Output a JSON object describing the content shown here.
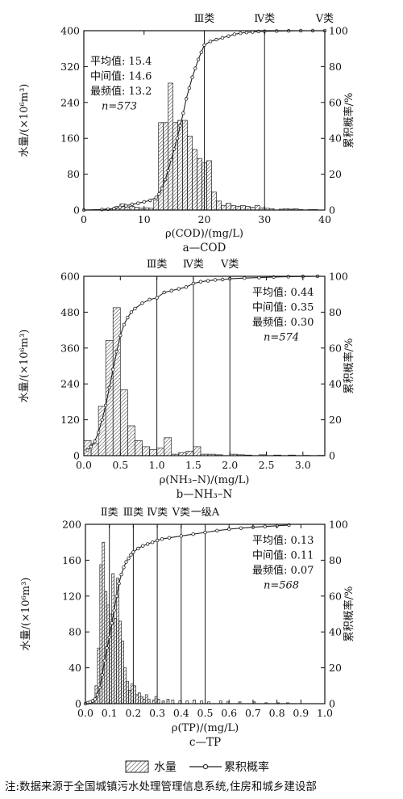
{
  "legend": {
    "bar_label": "水量",
    "line_label": "累积概率"
  },
  "note": "注:数据来源于全国城镇污水处理管理信息系统,住房和城乡建设部",
  "chart_data": [
    {
      "type": "bar",
      "panel_label": "a—COD",
      "xlabel": "ρ(COD)/(mg/L)",
      "ylabel_left": "水量/(×10⁶m³)",
      "ylabel_right": "累积概率/%",
      "xlim": [
        0,
        40
      ],
      "ylim_left": [
        0,
        400
      ],
      "ylim_right": [
        0,
        100
      ],
      "xticks": [
        0,
        10,
        20,
        30,
        40
      ],
      "xtick_labels": [
        "0",
        "10",
        "20",
        "30",
        "40"
      ],
      "yticks_left": [
        0,
        80,
        160,
        240,
        320,
        400
      ],
      "yticks_right": [
        0,
        20,
        40,
        60,
        80,
        100
      ],
      "bar_width": 0.8,
      "bars": [
        [
          3.2,
          2
        ],
        [
          4.0,
          3
        ],
        [
          4.8,
          3
        ],
        [
          5.6,
          8
        ],
        [
          6.4,
          14
        ],
        [
          7.2,
          7
        ],
        [
          8.0,
          8
        ],
        [
          8.8,
          6
        ],
        [
          9.6,
          4
        ],
        [
          10.4,
          5
        ],
        [
          11.2,
          4
        ],
        [
          12.0,
          22
        ],
        [
          12.8,
          195
        ],
        [
          13.6,
          195
        ],
        [
          14.4,
          283
        ],
        [
          15.2,
          195
        ],
        [
          16.0,
          200
        ],
        [
          16.8,
          200
        ],
        [
          17.6,
          165
        ],
        [
          18.4,
          135
        ],
        [
          19.2,
          115
        ],
        [
          20.0,
          105
        ],
        [
          20.8,
          110
        ],
        [
          21.6,
          40
        ],
        [
          22.4,
          20
        ],
        [
          23.2,
          10
        ],
        [
          24.0,
          15
        ],
        [
          24.8,
          10
        ],
        [
          25.6,
          8
        ],
        [
          26.4,
          10
        ],
        [
          27.2,
          8
        ],
        [
          28.0,
          6
        ],
        [
          28.8,
          10
        ],
        [
          29.6,
          5
        ],
        [
          30.4,
          4
        ],
        [
          31.2,
          3
        ],
        [
          32.8,
          2
        ],
        [
          33.6,
          3
        ],
        [
          34.4,
          2
        ],
        [
          35.2,
          3
        ],
        [
          36.0,
          1
        ],
        [
          37.6,
          1
        ],
        [
          38.4,
          1
        ]
      ],
      "cumulative": [
        [
          0,
          0
        ],
        [
          3,
          0.3
        ],
        [
          4,
          0.5
        ],
        [
          5,
          0.8
        ],
        [
          6,
          1.5
        ],
        [
          7,
          2.4
        ],
        [
          8,
          3.2
        ],
        [
          9,
          3.8
        ],
        [
          10,
          4.6
        ],
        [
          11,
          5.4
        ],
        [
          12,
          7
        ],
        [
          12.5,
          9
        ],
        [
          13,
          12
        ],
        [
          13.5,
          17
        ],
        [
          14,
          22
        ],
        [
          14.5,
          28
        ],
        [
          15,
          34
        ],
        [
          15.5,
          40
        ],
        [
          16,
          47
        ],
        [
          16.5,
          54
        ],
        [
          17,
          62
        ],
        [
          17.5,
          68
        ],
        [
          18,
          74
        ],
        [
          18.5,
          79
        ],
        [
          19,
          84
        ],
        [
          19.5,
          88
        ],
        [
          20,
          92
        ],
        [
          21,
          94
        ],
        [
          22,
          95
        ],
        [
          23,
          96
        ],
        [
          24,
          97
        ],
        [
          25,
          98
        ],
        [
          26,
          98.6
        ],
        [
          27,
          99
        ],
        [
          28,
          99.3
        ],
        [
          29,
          99.6
        ],
        [
          30,
          99.7
        ],
        [
          32,
          99.8
        ],
        [
          34,
          99.9
        ],
        [
          36,
          100
        ],
        [
          38,
          100
        ],
        [
          40,
          100
        ]
      ],
      "vlines": [
        {
          "x": 20,
          "label": "Ⅲ类"
        },
        {
          "x": 30,
          "label": "Ⅳ类"
        },
        {
          "x": 40,
          "label": "Ⅴ类"
        }
      ],
      "stats": [
        "平均值: 15.4",
        "中间值: 14.6",
        "最频值: 13.2",
        "n=573"
      ],
      "stats_position": "top-left"
    },
    {
      "type": "bar",
      "panel_label": "b—NH₃–N",
      "xlabel": "ρ(NH₃–N)/(mg/L)",
      "ylabel_left": "水量/(×10⁶m³)",
      "ylabel_right": "累积概率/%",
      "xlim": [
        0,
        3.3
      ],
      "ylim_left": [
        0,
        600
      ],
      "ylim_right": [
        0,
        100
      ],
      "xticks": [
        0,
        0.5,
        1.0,
        1.5,
        2.0,
        2.5,
        3.0
      ],
      "xtick_labels": [
        "0.0",
        "0.5",
        "1.0",
        "1.5",
        "2.0",
        "2.5",
        "3.0"
      ],
      "yticks_left": [
        0,
        120,
        240,
        360,
        480,
        600
      ],
      "yticks_right": [
        0,
        20,
        40,
        60,
        80,
        100
      ],
      "bar_width": 0.1,
      "bars": [
        [
          0.05,
          50
        ],
        [
          0.15,
          40
        ],
        [
          0.25,
          165
        ],
        [
          0.35,
          385
        ],
        [
          0.45,
          495
        ],
        [
          0.55,
          220
        ],
        [
          0.65,
          100
        ],
        [
          0.75,
          50
        ],
        [
          0.85,
          30
        ],
        [
          0.95,
          20
        ],
        [
          1.05,
          25
        ],
        [
          1.15,
          60
        ],
        [
          1.25,
          5
        ],
        [
          1.35,
          10
        ],
        [
          1.45,
          15
        ],
        [
          1.55,
          30
        ],
        [
          1.65,
          5
        ],
        [
          1.75,
          5
        ],
        [
          1.85,
          3
        ],
        [
          2.05,
          5
        ],
        [
          2.15,
          3
        ],
        [
          2.25,
          2
        ],
        [
          2.45,
          3
        ],
        [
          2.65,
          2
        ],
        [
          2.85,
          2
        ],
        [
          3.05,
          1
        ],
        [
          3.25,
          1
        ]
      ],
      "cumulative": [
        [
          0.05,
          3
        ],
        [
          0.1,
          5
        ],
        [
          0.15,
          8
        ],
        [
          0.2,
          13
        ],
        [
          0.25,
          20
        ],
        [
          0.3,
          28
        ],
        [
          0.35,
          38
        ],
        [
          0.4,
          48
        ],
        [
          0.45,
          58
        ],
        [
          0.5,
          67
        ],
        [
          0.55,
          73
        ],
        [
          0.6,
          77
        ],
        [
          0.65,
          80
        ],
        [
          0.7,
          82
        ],
        [
          0.8,
          85
        ],
        [
          0.9,
          87
        ],
        [
          1.0,
          88
        ],
        [
          1.1,
          91
        ],
        [
          1.2,
          92
        ],
        [
          1.3,
          93
        ],
        [
          1.4,
          94
        ],
        [
          1.5,
          96
        ],
        [
          1.6,
          97
        ],
        [
          1.7,
          97.5
        ],
        [
          1.8,
          98
        ],
        [
          1.9,
          98.2
        ],
        [
          2.0,
          98.6
        ],
        [
          2.2,
          99
        ],
        [
          2.4,
          99.3
        ],
        [
          2.6,
          99.6
        ],
        [
          2.8,
          99.8
        ],
        [
          3.0,
          99.9
        ],
        [
          3.2,
          100
        ]
      ],
      "vlines": [
        {
          "x": 1.0,
          "label": "Ⅲ类"
        },
        {
          "x": 1.5,
          "label": "Ⅳ类"
        },
        {
          "x": 2.0,
          "label": "Ⅴ类"
        }
      ],
      "stats": [
        "平均值: 0.44",
        "中间值: 0.35",
        "最频值: 0.30",
        "n=574"
      ],
      "stats_position": "top-right"
    },
    {
      "type": "bar",
      "panel_label": "c—TP",
      "xlabel": "ρ(TP)/(mg/L)",
      "ylabel_left": "水量/(×10⁶m³)",
      "ylabel_right": "累积概率/%",
      "xlim": [
        0,
        1.0
      ],
      "ylim_left": [
        0,
        200
      ],
      "ylim_right": [
        0,
        100
      ],
      "xticks": [
        0,
        0.1,
        0.2,
        0.3,
        0.4,
        0.5,
        0.6,
        0.7,
        0.8,
        0.9,
        1.0
      ],
      "xtick_labels": [
        "0.0",
        "0.1",
        "0.2",
        "0.3",
        "0.4",
        "0.5",
        "0.6",
        "0.7",
        "0.8",
        "0.9",
        "1.0"
      ],
      "yticks_left": [
        0,
        40,
        80,
        120,
        160,
        200
      ],
      "yticks_right": [
        0,
        20,
        40,
        60,
        80,
        100
      ],
      "bar_width": 0.01,
      "bars": [
        [
          0.015,
          2
        ],
        [
          0.025,
          3
        ],
        [
          0.035,
          5
        ],
        [
          0.045,
          20
        ],
        [
          0.055,
          62
        ],
        [
          0.065,
          155
        ],
        [
          0.075,
          180
        ],
        [
          0.085,
          125
        ],
        [
          0.095,
          110
        ],
        [
          0.105,
          100
        ],
        [
          0.115,
          145
        ],
        [
          0.125,
          95
        ],
        [
          0.135,
          140
        ],
        [
          0.145,
          92
        ],
        [
          0.155,
          70
        ],
        [
          0.165,
          40
        ],
        [
          0.175,
          25
        ],
        [
          0.185,
          15
        ],
        [
          0.195,
          22
        ],
        [
          0.205,
          20
        ],
        [
          0.215,
          10
        ],
        [
          0.225,
          12
        ],
        [
          0.235,
          8
        ],
        [
          0.245,
          5
        ],
        [
          0.255,
          10
        ],
        [
          0.265,
          5
        ],
        [
          0.285,
          4
        ],
        [
          0.295,
          8
        ],
        [
          0.305,
          5
        ],
        [
          0.325,
          3
        ],
        [
          0.345,
          5
        ],
        [
          0.365,
          4
        ],
        [
          0.395,
          3
        ],
        [
          0.425,
          3
        ],
        [
          0.455,
          4
        ],
        [
          0.485,
          3
        ],
        [
          0.515,
          2
        ],
        [
          0.565,
          3
        ],
        [
          0.595,
          2
        ],
        [
          0.645,
          2
        ],
        [
          0.705,
          2
        ],
        [
          0.755,
          1
        ],
        [
          0.805,
          1
        ],
        [
          0.845,
          1
        ]
      ],
      "cumulative": [
        [
          0.0,
          0
        ],
        [
          0.01,
          0.5
        ],
        [
          0.02,
          1
        ],
        [
          0.03,
          1.5
        ],
        [
          0.04,
          2.5
        ],
        [
          0.05,
          5
        ],
        [
          0.06,
          9
        ],
        [
          0.07,
          16
        ],
        [
          0.08,
          24
        ],
        [
          0.09,
          31
        ],
        [
          0.1,
          37
        ],
        [
          0.11,
          45
        ],
        [
          0.12,
          52
        ],
        [
          0.13,
          60
        ],
        [
          0.14,
          67
        ],
        [
          0.15,
          72
        ],
        [
          0.16,
          76
        ],
        [
          0.17,
          79
        ],
        [
          0.18,
          81
        ],
        [
          0.19,
          83
        ],
        [
          0.2,
          84.5
        ],
        [
          0.22,
          86.5
        ],
        [
          0.24,
          88
        ],
        [
          0.26,
          89
        ],
        [
          0.28,
          90
        ],
        [
          0.3,
          91
        ],
        [
          0.32,
          91.8
        ],
        [
          0.35,
          92.5
        ],
        [
          0.4,
          93.5
        ],
        [
          0.45,
          94.5
        ],
        [
          0.5,
          95.5
        ],
        [
          0.55,
          96.5
        ],
        [
          0.6,
          97.3
        ],
        [
          0.65,
          97.9
        ],
        [
          0.7,
          98.4
        ],
        [
          0.75,
          98.8
        ],
        [
          0.8,
          99.2
        ],
        [
          0.85,
          99.6
        ]
      ],
      "vlines": [
        {
          "x": 0.1,
          "label": "Ⅱ类"
        },
        {
          "x": 0.2,
          "label": "Ⅲ类"
        },
        {
          "x": 0.3,
          "label": "Ⅳ类"
        },
        {
          "x": 0.4,
          "label": "Ⅴ类"
        },
        {
          "x": 0.5,
          "label": "一级A"
        }
      ],
      "stats": [
        "平均值: 0.13",
        "中间值: 0.11",
        "最频值: 0.07",
        "n=568"
      ],
      "stats_position": "top-right"
    }
  ]
}
